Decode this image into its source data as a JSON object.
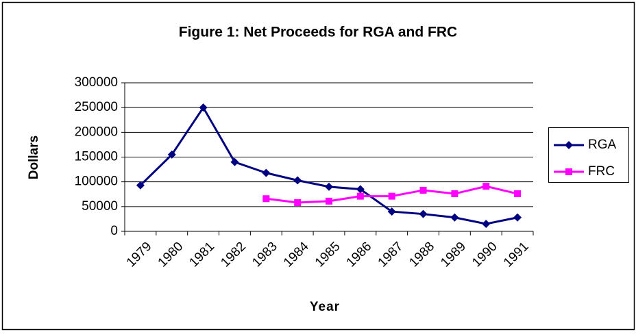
{
  "chart_data": {
    "type": "line",
    "title": "Figure 1: Net Proceeds for RGA and FRC",
    "x_label": "Year",
    "y_label": "Dollars",
    "categories": [
      "1979",
      "1980",
      "1981",
      "1982",
      "1983",
      "1984",
      "1985",
      "1986",
      "1987",
      "1988",
      "1989",
      "1990",
      "1991"
    ],
    "series": [
      {
        "name": "RGA",
        "color": "#000080",
        "marker": "diamond",
        "values": [
          93000,
          155000,
          250000,
          140000,
          118000,
          103000,
          90000,
          85000,
          40000,
          35000,
          28000,
          15000,
          28000
        ]
      },
      {
        "name": "FRC",
        "color": "#ff00ff",
        "marker": "square",
        "values": [
          null,
          null,
          null,
          null,
          66000,
          58000,
          61000,
          71000,
          71000,
          83000,
          76000,
          91000,
          76000
        ]
      }
    ],
    "ylim": [
      0,
      300000
    ],
    "yticks": [
      0,
      50000,
      100000,
      150000,
      200000,
      250000,
      300000
    ],
    "grid": true,
    "legend": "right"
  }
}
